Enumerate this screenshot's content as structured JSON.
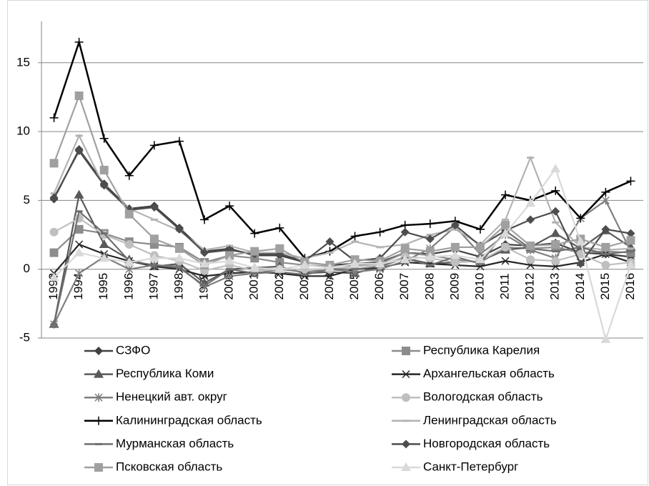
{
  "chart_data": {
    "type": "line",
    "categories": [
      "1993",
      "1994",
      "1995",
      "1996",
      "1997",
      "1998",
      "1999",
      "2000",
      "2001",
      "2002",
      "2003",
      "2004",
      "2005",
      "2006",
      "2007",
      "2008",
      "2009",
      "2010",
      "2011",
      "2012",
      "2013",
      "2014",
      "2015",
      "2016"
    ],
    "ylim": [
      -5,
      18
    ],
    "yticks": [
      -5,
      0,
      5,
      10,
      15
    ],
    "grid": true,
    "legend": "bottom",
    "series": [
      {
        "name": "СЗФО",
        "color": "#404040",
        "marker": "diamond",
        "values": [
          5.1,
          8.7,
          6.2,
          4.4,
          4.6,
          3.0,
          1.3,
          1.5,
          1.0,
          1.0,
          0.5,
          0.3,
          0.4,
          0.5,
          1.2,
          1.1,
          1.4,
          0.9,
          1.8,
          1.7,
          1.9,
          1.2,
          1.1,
          0.9
        ]
      },
      {
        "name": "Республика Карелия",
        "color": "#8c8c8c",
        "marker": "square",
        "values": [
          1.2,
          2.9,
          2.6,
          2.0,
          1.8,
          1.6,
          0.5,
          1.0,
          0.8,
          0.5,
          0.3,
          0.2,
          0.3,
          0.4,
          1.2,
          1.0,
          0.7,
          0.5,
          1.6,
          1.5,
          1.6,
          1.2,
          1.3,
          1.2
        ]
      },
      {
        "name": "Республика Коми",
        "color": "#595959",
        "marker": "triangle",
        "values": [
          -4.0,
          5.4,
          1.8,
          0.7,
          0.2,
          0.4,
          -1.0,
          0.0,
          0.1,
          0.2,
          -0.3,
          -0.2,
          -0.3,
          0.2,
          0.8,
          0.4,
          0.5,
          0.6,
          1.4,
          1.6,
          2.6,
          1.5,
          2.8,
          1.6
        ]
      },
      {
        "name": "Архангельская область",
        "color": "#262626",
        "marker": "x",
        "values": [
          -0.3,
          1.8,
          1.1,
          0.6,
          0.2,
          0.0,
          -0.5,
          -0.3,
          -0.2,
          -0.3,
          -0.5,
          -0.5,
          0.0,
          0.1,
          0.5,
          0.4,
          0.3,
          0.2,
          0.6,
          0.3,
          0.2,
          0.5,
          1.1,
          0.5
        ]
      },
      {
        "name": "Ненецкий авт. округ",
        "color": "#7f7f7f",
        "marker": "star",
        "values": [
          -4.0,
          -0.3,
          0.9,
          0.0,
          0.3,
          0.2,
          -1.3,
          -0.5,
          -0.3,
          0.0,
          -0.2,
          0.0,
          -0.2,
          0.0,
          0.6,
          1.5,
          3.1,
          1.1,
          2.5,
          1.4,
          0.8,
          3.7,
          5.0,
          1.3
        ]
      },
      {
        "name": "Вологодская область",
        "color": "#bfbfbf",
        "marker": "circle",
        "values": [
          2.7,
          3.7,
          2.5,
          1.8,
          1.0,
          0.6,
          -0.1,
          0.3,
          -0.1,
          0.0,
          0.0,
          0.0,
          0.2,
          0.3,
          0.9,
          0.8,
          0.5,
          0.6,
          1.6,
          0.7,
          0.6,
          1.1,
          0.3,
          0.5
        ]
      },
      {
        "name": "Калининградская область",
        "color": "#000000",
        "marker": "plus",
        "values": [
          11.0,
          16.5,
          9.5,
          6.8,
          9.0,
          9.3,
          3.6,
          4.6,
          2.6,
          3.0,
          0.8,
          1.3,
          2.4,
          2.7,
          3.2,
          3.3,
          3.5,
          2.9,
          5.4,
          5.0,
          5.7,
          3.7,
          5.6,
          6.4
        ]
      },
      {
        "name": "Ленинградская область",
        "color": "#b3b3b3",
        "marker": "dash",
        "values": [
          5.5,
          9.7,
          6.0,
          4.4,
          3.6,
          2.8,
          1.4,
          1.7,
          1.2,
          1.2,
          0.8,
          1.2,
          2.0,
          1.6,
          1.8,
          2.5,
          2.9,
          1.8,
          3.6,
          8.1,
          3.4,
          1.6,
          1.4,
          1.5
        ]
      },
      {
        "name": "Мурманская область",
        "color": "#6e6e6e",
        "marker": "dash",
        "values": [
          -4.0,
          4.2,
          2.6,
          0.6,
          0.3,
          0.1,
          -1.2,
          0.0,
          -0.3,
          -0.2,
          -0.4,
          0.0,
          0.0,
          0.2,
          0.8,
          0.3,
          0.9,
          0.4,
          2.8,
          1.5,
          1.3,
          1.6,
          1.1,
          1.3
        ]
      },
      {
        "name": "Новгородская область",
        "color": "#4d4d4d",
        "marker": "diamond",
        "values": [
          5.2,
          8.6,
          6.1,
          4.3,
          4.5,
          2.9,
          1.2,
          1.4,
          1.1,
          1.1,
          0.6,
          2.0,
          0.6,
          0.8,
          2.7,
          2.2,
          3.2,
          1.7,
          2.8,
          3.6,
          4.2,
          0.4,
          2.9,
          2.6
        ]
      },
      {
        "name": "Псковская область",
        "color": "#a0a0a0",
        "marker": "square",
        "values": [
          7.7,
          12.6,
          7.2,
          4.0,
          2.2,
          1.5,
          0.3,
          1.0,
          1.3,
          1.5,
          0.5,
          0.3,
          0.7,
          0.6,
          1.5,
          1.3,
          1.6,
          1.6,
          3.2,
          1.7,
          1.8,
          2.2,
          1.6,
          2.1
        ]
      },
      {
        "name": "Санкт-Петербург",
        "color": "#d9d9d9",
        "marker": "triangle",
        "values": [
          -0.6,
          1.2,
          0.8,
          0.5,
          0.8,
          0.8,
          0.4,
          0.6,
          0.1,
          0.0,
          0.3,
          0.1,
          0.4,
          0.4,
          0.7,
          0.9,
          1.0,
          0.7,
          2.6,
          4.8,
          7.3,
          2.0,
          -5.1,
          0.3
        ]
      }
    ]
  }
}
